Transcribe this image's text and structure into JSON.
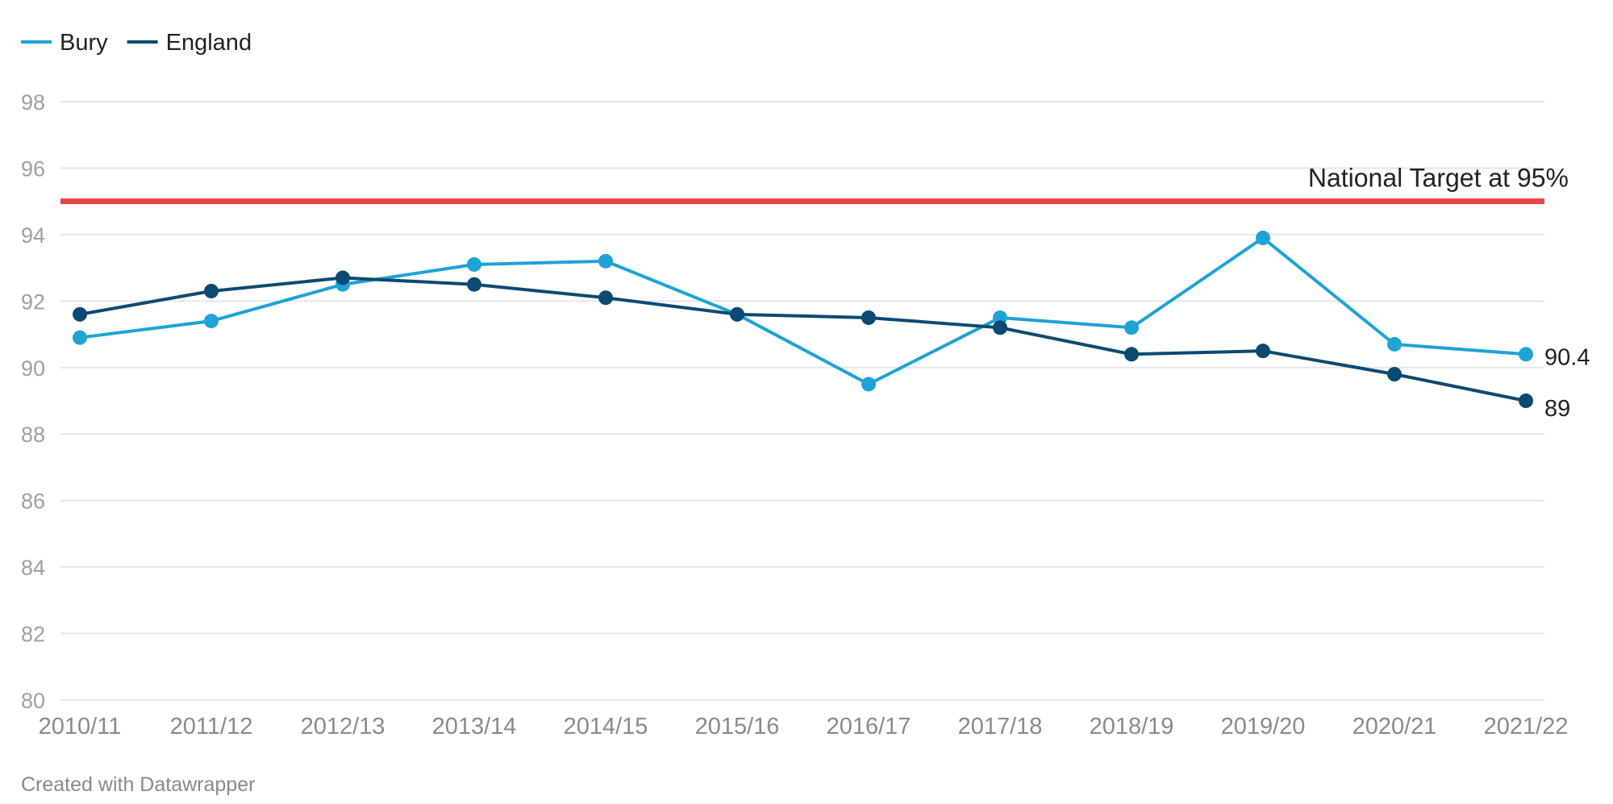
{
  "chart_data": {
    "type": "line",
    "categories": [
      "2010/11",
      "2011/12",
      "2012/13",
      "2013/14",
      "2014/15",
      "2015/16",
      "2016/17",
      "2017/18",
      "2018/19",
      "2019/20",
      "2020/21",
      "2021/22"
    ],
    "series": [
      {
        "name": "Bury",
        "color": "#1ea3d6",
        "values": [
          90.9,
          91.4,
          92.5,
          93.1,
          93.2,
          91.6,
          89.5,
          91.5,
          91.2,
          93.9,
          90.7,
          90.4
        ],
        "end_label": "90.4"
      },
      {
        "name": "England",
        "color": "#0b4a72",
        "values": [
          91.6,
          92.3,
          92.7,
          92.5,
          92.1,
          91.6,
          91.5,
          91.2,
          90.4,
          90.5,
          89.8,
          89.0
        ],
        "end_label": "89"
      }
    ],
    "ylim": [
      80,
      98
    ],
    "yticks": [
      80,
      82,
      84,
      86,
      88,
      90,
      92,
      94,
      96,
      98
    ],
    "grid": true,
    "legend": "top-left",
    "reference_line": {
      "value": 95,
      "label": "National Target at 95%",
      "color": "#e84646"
    },
    "title": "",
    "xlabel": "",
    "ylabel": ""
  },
  "footer": {
    "credit": "Created with Datawrapper"
  }
}
